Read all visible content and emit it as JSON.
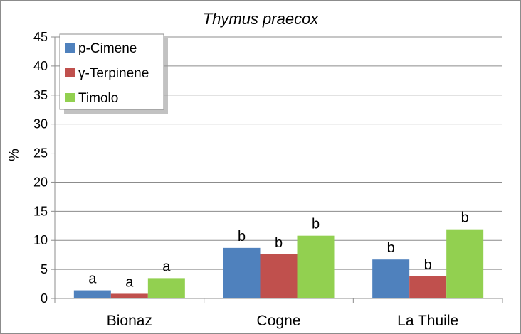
{
  "chart_data": {
    "type": "bar",
    "title": "Thymus praecox",
    "xlabel": "",
    "ylabel": "%",
    "ylim": [
      0,
      45
    ],
    "yticks": [
      0,
      5,
      10,
      15,
      20,
      25,
      30,
      35,
      40,
      45
    ],
    "grid": true,
    "legend_position": "top-left",
    "categories": [
      "Bionaz",
      "Cogne",
      "La Thuile"
    ],
    "series": [
      {
        "name": "p-Cimene",
        "color": "#4f81bd",
        "values": [
          1.4,
          8.7,
          6.7
        ],
        "labels": [
          "a",
          "b",
          "b"
        ]
      },
      {
        "name": "γ-Terpinene",
        "color": "#c0504d",
        "values": [
          0.8,
          7.6,
          3.8
        ],
        "labels": [
          "a",
          "b",
          "b"
        ]
      },
      {
        "name": "Timolo",
        "color": "#92d050",
        "values": [
          3.5,
          10.8,
          11.9
        ],
        "labels": [
          "a",
          "b",
          "b"
        ]
      }
    ]
  }
}
